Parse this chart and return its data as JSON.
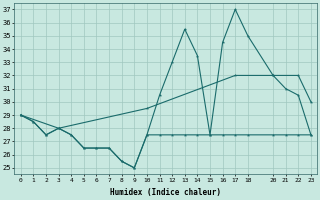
{
  "xlabel": "Humidex (Indice chaleur)",
  "xlim": [
    -0.5,
    23.5
  ],
  "ylim": [
    24.5,
    37.5
  ],
  "yticks": [
    25,
    26,
    27,
    28,
    29,
    30,
    31,
    32,
    33,
    34,
    35,
    36,
    37
  ],
  "xticks": [
    0,
    1,
    2,
    3,
    4,
    5,
    6,
    7,
    8,
    9,
    10,
    11,
    12,
    13,
    14,
    15,
    16,
    17,
    18,
    20,
    21,
    22,
    23
  ],
  "bg_color": "#c8e8e0",
  "line_color": "#1a6b6b",
  "grid_color": "#a0c8c0",
  "line1_hours": [
    0,
    1,
    2,
    3,
    4,
    5,
    6,
    7,
    8,
    9,
    10,
    11,
    12,
    13,
    14,
    15,
    16,
    17,
    18,
    20,
    21,
    22,
    23
  ],
  "line1_vals": [
    29,
    28.5,
    27.5,
    28,
    27.5,
    26.5,
    26.5,
    26.5,
    25.5,
    25,
    27.5,
    30.5,
    33,
    35.5,
    33.5,
    27.5,
    34.5,
    37,
    35,
    32,
    31,
    30.5,
    27.5
  ],
  "line2_hours": [
    0,
    1,
    2,
    3,
    4,
    5,
    6,
    7,
    8,
    9,
    10,
    11,
    12,
    13,
    14,
    15,
    16,
    17,
    18,
    20,
    21,
    22,
    23
  ],
  "line2_vals": [
    29,
    28.5,
    27.5,
    28,
    27.5,
    26.5,
    26.5,
    26.5,
    25.5,
    25.0,
    27.5,
    27.5,
    27.5,
    27.5,
    27.5,
    27.5,
    27.5,
    27.5,
    27.5,
    27.5,
    27.5,
    27.5,
    27.5
  ],
  "line3_hours": [
    0,
    3,
    10,
    17,
    20,
    22,
    23
  ],
  "line3_vals": [
    29,
    28,
    29.5,
    32,
    32,
    32,
    30
  ]
}
